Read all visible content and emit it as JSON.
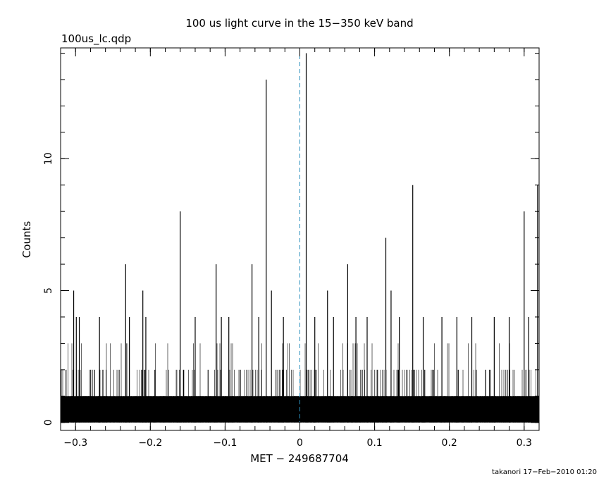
{
  "chart_data": {
    "type": "bar",
    "title": "100 us light curve in the 15−350 keV band",
    "subtitle": "100us_lc.qdp",
    "xlabel": "MET − 249687704",
    "ylabel": "Counts",
    "footer": "takanori 17−Feb−2010 01:20",
    "xlim": [
      -0.32,
      0.32
    ],
    "ylim": [
      -0.3,
      14.2
    ],
    "x_ticks": [
      {
        "value": -0.3,
        "label": "−0.3"
      },
      {
        "value": -0.2,
        "label": "−0.2"
      },
      {
        "value": -0.1,
        "label": "−0.1"
      },
      {
        "value": 0,
        "label": "0"
      },
      {
        "value": 0.1,
        "label": "0.1"
      },
      {
        "value": 0.2,
        "label": "0.2"
      },
      {
        "value": 0.3,
        "label": "0.3"
      }
    ],
    "y_ticks": [
      {
        "value": 0,
        "label": "0"
      },
      {
        "value": 5,
        "label": "5"
      },
      {
        "value": 10,
        "label": "10"
      }
    ],
    "trigger_line_x": 0,
    "trigger_line_color": "#2a8fbd",
    "bin_width": 0.0001,
    "baseline_max": 2,
    "peaks": [
      {
        "x": -0.3025,
        "y": 5
      },
      {
        "x": -0.299,
        "y": 4
      },
      {
        "x": -0.295,
        "y": 4
      },
      {
        "x": -0.268,
        "y": 4
      },
      {
        "x": -0.233,
        "y": 6
      },
      {
        "x": -0.228,
        "y": 4
      },
      {
        "x": -0.21,
        "y": 5
      },
      {
        "x": -0.206,
        "y": 4
      },
      {
        "x": -0.16,
        "y": 8
      },
      {
        "x": -0.14,
        "y": 4
      },
      {
        "x": -0.112,
        "y": 6
      },
      {
        "x": -0.105,
        "y": 4
      },
      {
        "x": -0.095,
        "y": 4
      },
      {
        "x": -0.064,
        "y": 6
      },
      {
        "x": -0.055,
        "y": 4
      },
      {
        "x": -0.045,
        "y": 13
      },
      {
        "x": -0.038,
        "y": 5
      },
      {
        "x": -0.022,
        "y": 4
      },
      {
        "x": 0.0085,
        "y": 14
      },
      {
        "x": 0.02,
        "y": 4
      },
      {
        "x": 0.037,
        "y": 5
      },
      {
        "x": 0.045,
        "y": 4
      },
      {
        "x": 0.064,
        "y": 6
      },
      {
        "x": 0.075,
        "y": 4
      },
      {
        "x": 0.09,
        "y": 4
      },
      {
        "x": 0.115,
        "y": 7
      },
      {
        "x": 0.122,
        "y": 5
      },
      {
        "x": 0.133,
        "y": 4
      },
      {
        "x": 0.151,
        "y": 9
      },
      {
        "x": 0.165,
        "y": 4
      },
      {
        "x": 0.19,
        "y": 4
      },
      {
        "x": 0.21,
        "y": 4
      },
      {
        "x": 0.23,
        "y": 4
      },
      {
        "x": 0.26,
        "y": 4
      },
      {
        "x": 0.28,
        "y": 4
      },
      {
        "x": 0.3,
        "y": 8
      },
      {
        "x": 0.306,
        "y": 4
      },
      {
        "x": 0.318,
        "y": 9
      }
    ]
  }
}
